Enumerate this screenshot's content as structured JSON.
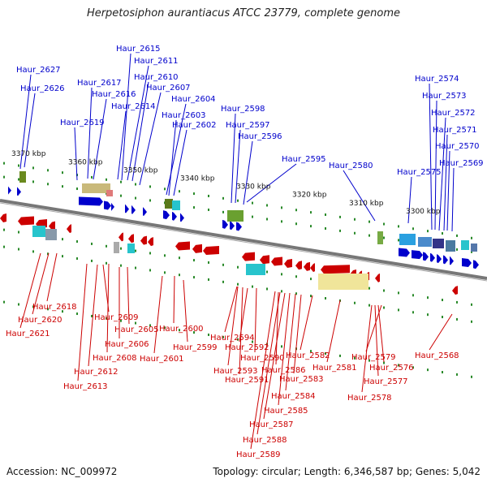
{
  "title": "Herpetosiphon aurantiacus ATCC 23779, complete genome",
  "accession": "Accession: NC_009972",
  "summary": "Topology: circular; Length: 6,346,587 bp; Genes: 5,042",
  "scale_labels": [
    "3370 kbp",
    "3360 kbp",
    "3350 kbp",
    "3340 kbp",
    "3330 kbp",
    "3320 kbp",
    "3310 kbp",
    "3300 kbp"
  ],
  "forward_genes": [
    "Haur_2627",
    "Haur_2626",
    "Haur_2619",
    "Haur_2617",
    "Haur_2616",
    "Haur_2615",
    "Haur_2611",
    "Haur_2610",
    "Haur_2614",
    "Haur_2607",
    "Haur_2604",
    "Haur_2603",
    "Haur_2602",
    "Haur_2598",
    "Haur_2597",
    "Haur_2596",
    "Haur_2595",
    "Haur_2580",
    "Haur_2575",
    "Haur_2574",
    "Haur_2573",
    "Haur_2572",
    "Haur_2571",
    "Haur_2570",
    "Haur_2569"
  ],
  "reverse_genes": [
    "Haur_2618",
    "Haur_2620",
    "Haur_2621",
    "Haur_2609",
    "Haur_2605",
    "Haur_2606",
    "Haur_2608",
    "Haur_2612",
    "Haur_2613",
    "Haur_2600",
    "Haur_2601",
    "Haur_2599",
    "Haur_2594",
    "Haur_2592",
    "Haur_2590",
    "Haur_2593",
    "Haur_2591",
    "Haur_2586",
    "Haur_2582",
    "Haur_2583",
    "Haur_2584",
    "Haur_2585",
    "Haur_2587",
    "Haur_2588",
    "Haur_2589",
    "Haur_2581",
    "Haur_2579",
    "Haur_2576",
    "Haur_2577",
    "Haur_2578",
    "Haur_2568"
  ],
  "colors": {
    "forward": "#0000cc",
    "reverse": "#cc0000",
    "backbone": "#7a7a7a",
    "tick": "#2a8a2a"
  }
}
